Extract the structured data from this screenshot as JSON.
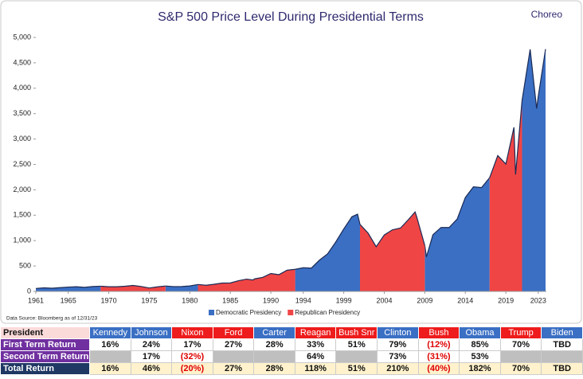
{
  "chart_data": {
    "type": "area",
    "title": "S&P 500 Price Level During Presidential Terms",
    "brand": "Choreo",
    "note": "Data Source: Bloomberg as of 12/31/23",
    "x": [
      1961,
      1962,
      1963,
      1964,
      1965,
      1966,
      1967,
      1968,
      1969,
      1970,
      1971,
      1972,
      1973,
      1974,
      1975,
      1976,
      1977,
      1978,
      1979,
      1980,
      1981,
      1982,
      1983,
      1984,
      1985,
      1986,
      1987,
      1987.8,
      1988,
      1989,
      1990,
      1991,
      1992,
      1993,
      1994,
      1995,
      1996,
      1997,
      1998,
      1999,
      2000,
      2000.7,
      2001,
      2002,
      2003,
      2004,
      2005,
      2006,
      2007,
      2007.8,
      2008,
      2009,
      2009.2,
      2010,
      2011,
      2012,
      2013,
      2014,
      2015,
      2016,
      2017,
      2018,
      2019,
      2020,
      2020.2,
      2021,
      2022,
      2022.8,
      2023,
      2023.9
    ],
    "series": [
      {
        "name": "Democratic Presidency",
        "color": "#3a6fc4",
        "values": [
          58,
          71,
          63,
          75,
          85,
          92,
          80,
          96,
          103,
          null,
          null,
          null,
          null,
          null,
          null,
          null,
          107,
          95,
          96,
          108,
          136,
          null,
          null,
          null,
          null,
          null,
          null,
          null,
          null,
          null,
          null,
          null,
          null,
          435,
          466,
          459,
          615,
          740,
          970,
          1229,
          1469,
          1520,
          1320,
          null,
          null,
          null,
          null,
          null,
          null,
          null,
          null,
          903,
          680,
          1115,
          1258,
          1258,
          1426,
          1848,
          2059,
          2044,
          2239,
          null,
          null,
          null,
          null,
          3756,
          4766,
          3600,
          3840,
          4770
        ]
      },
      {
        "name": "Republican Presidency",
        "color": "#f04545",
        "values": [
          null,
          null,
          null,
          null,
          null,
          null,
          null,
          null,
          103,
          92,
          92,
          102,
          118,
          97,
          68,
          90,
          107,
          null,
          null,
          null,
          136,
          122,
          141,
          165,
          167,
          211,
          242,
          225,
          247,
          277,
          353,
          330,
          417,
          435,
          null,
          null,
          null,
          null,
          null,
          null,
          null,
          null,
          1320,
          1148,
          880,
          1112,
          1212,
          1248,
          1418,
          1565,
          1468,
          903,
          null,
          null,
          null,
          null,
          null,
          null,
          null,
          null,
          2239,
          2674,
          2507,
          3231,
          2300,
          3756,
          null,
          null,
          null,
          null
        ]
      }
    ],
    "xlim": [
      1961,
      2024
    ],
    "xticks": [
      1961,
      1965,
      1970,
      1975,
      1980,
      1985,
      1990,
      1994,
      1999,
      2004,
      2009,
      2014,
      2019,
      2023
    ],
    "ylim": [
      0,
      5000
    ],
    "yticks": [
      0,
      500,
      {
        "value": 1000,
        "label": "1,000"
      },
      {
        "value": 1500,
        "label": "1,500"
      },
      {
        "value": 2000,
        "label": "2,000"
      },
      {
        "value": 2500,
        "label": "2,500"
      },
      {
        "value": 3000,
        "label": "3,000"
      },
      {
        "value": 3500,
        "label": "3,500"
      },
      {
        "value": 4000,
        "label": "4,000"
      },
      {
        "value": 4500,
        "label": "4,500"
      },
      {
        "value": 5000,
        "label": "5,000"
      }
    ]
  },
  "table": {
    "header": "President",
    "columns": [
      {
        "name": "Kennedy",
        "color": "#3a6fc4"
      },
      {
        "name": "Johnson",
        "color": "#3a6fc4"
      },
      {
        "name": "Nixon",
        "color": "#ee1c1c"
      },
      {
        "name": "Ford",
        "color": "#ee1c1c"
      },
      {
        "name": "Carter",
        "color": "#3a6fc4"
      },
      {
        "name": "Reagan",
        "color": "#ee1c1c"
      },
      {
        "name": "Bush Snr",
        "color": "#ee1c1c"
      },
      {
        "name": "Clinton",
        "color": "#3a6fc4"
      },
      {
        "name": "Bush",
        "color": "#ee1c1c"
      },
      {
        "name": "Obama",
        "color": "#3a6fc4"
      },
      {
        "name": "Trump",
        "color": "#ee1c1c"
      },
      {
        "name": "Biden",
        "color": "#3a6fc4"
      }
    ],
    "rows": [
      {
        "label": "First Term Return",
        "values": [
          "16%",
          "24%",
          "17%",
          "27%",
          "28%",
          "33%",
          "51%",
          "79%",
          "(12%)",
          "85%",
          "70%",
          "TBD"
        ]
      },
      {
        "label": "Second Term Return",
        "values": [
          null,
          "17%",
          "(32%)",
          null,
          null,
          "64%",
          null,
          "73%",
          "(31%)",
          "53%",
          null,
          null
        ]
      },
      {
        "label": "Total Return",
        "values": [
          "16%",
          "46%",
          "(20%)",
          "27%",
          "28%",
          "118%",
          "51%",
          "210%",
          "(40%)",
          "182%",
          "70%",
          "TBD"
        ]
      }
    ]
  }
}
